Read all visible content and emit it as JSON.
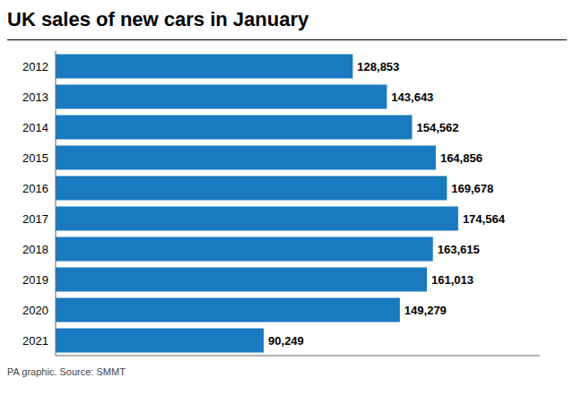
{
  "chart_data": {
    "type": "bar",
    "orientation": "horizontal",
    "title": "UK sales of new cars in January",
    "annotations": [
      "PA graphic. Source: SMMT"
    ],
    "categories": [
      "2012",
      "2013",
      "2014",
      "2015",
      "2016",
      "2017",
      "2018",
      "2019",
      "2020",
      "2021"
    ],
    "values": [
      128853,
      143643,
      154562,
      164856,
      169678,
      174564,
      163615,
      161013,
      149279,
      90249
    ],
    "value_labels": [
      "128,853",
      "143,643",
      "154,562",
      "164,856",
      "169,678",
      "174,564",
      "163,615",
      "161,013",
      "149,279",
      "90,249"
    ],
    "data_labels": true,
    "color": "#1a7abf",
    "xlim": [
      0,
      210000
    ],
    "tick_labels": "y",
    "grid": false
  }
}
